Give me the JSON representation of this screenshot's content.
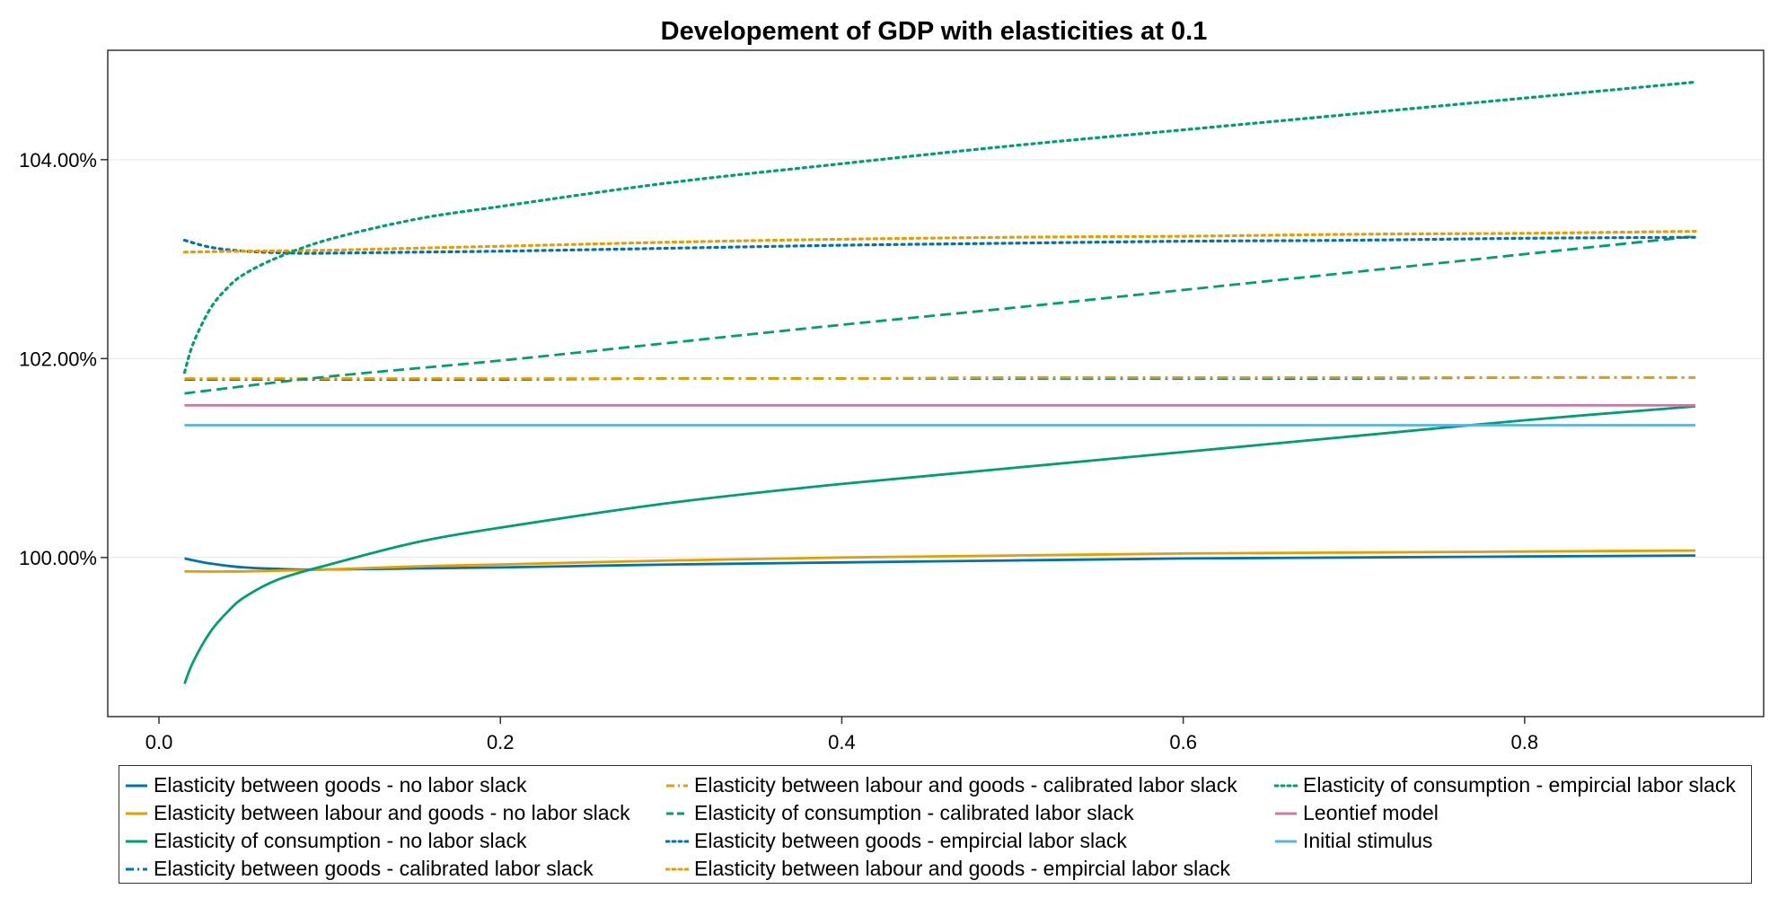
{
  "chart_data": {
    "type": "line",
    "title": "Developement of GDP with elasticities at 0.1",
    "xlabel": "",
    "ylabel": "",
    "xlim": [
      -0.03,
      0.94
    ],
    "ylim": [
      98.4,
      105.1
    ],
    "xticks": [
      0.0,
      0.2,
      0.4,
      0.6,
      0.8
    ],
    "xtick_labels": [
      "0.0",
      "0.2",
      "0.4",
      "0.6",
      "0.8"
    ],
    "yticks": [
      100,
      102,
      104
    ],
    "ytick_labels": [
      "100.00%",
      "102.00%",
      "104.00%"
    ],
    "grid": "horizontal",
    "legend_position": "bottom",
    "series": [
      {
        "name": "Elasticity between goods -  no labor slack",
        "color": "#0072b2",
        "style": "solid",
        "x": [
          0.015,
          0.03,
          0.05,
          0.08,
          0.1,
          0.15,
          0.2,
          0.3,
          0.4,
          0.5,
          0.6,
          0.7,
          0.8,
          0.9
        ],
        "y": [
          99.99,
          99.94,
          99.9,
          99.88,
          99.88,
          99.89,
          99.9,
          99.93,
          99.95,
          99.97,
          99.99,
          100.0,
          100.01,
          100.02
        ]
      },
      {
        "name": "Elasticity between labour and goods -  no labor slack",
        "color": "#e69f00",
        "style": "solid",
        "x": [
          0.015,
          0.05,
          0.1,
          0.15,
          0.2,
          0.3,
          0.4,
          0.5,
          0.6,
          0.7,
          0.8,
          0.9
        ],
        "y": [
          99.86,
          99.86,
          99.88,
          99.91,
          99.93,
          99.97,
          100.0,
          100.02,
          100.04,
          100.05,
          100.06,
          100.07
        ]
      },
      {
        "name": "Elasticity of consumption - no labor slack",
        "color": "#009e73",
        "style": "solid",
        "x": [
          0.015,
          0.02,
          0.03,
          0.04,
          0.05,
          0.07,
          0.1,
          0.15,
          0.2,
          0.3,
          0.4,
          0.5,
          0.6,
          0.7,
          0.8,
          0.9
        ],
        "y": [
          98.73,
          98.95,
          99.25,
          99.45,
          99.6,
          99.78,
          99.93,
          100.15,
          100.3,
          100.55,
          100.74,
          100.9,
          101.06,
          101.22,
          101.38,
          101.52
        ]
      },
      {
        "name": "Elasticity between goods -  calibrated labor slack",
        "color": "#0072b2",
        "style": "dashdot",
        "x": [
          0.015,
          0.1,
          0.2,
          0.3,
          0.4,
          0.5,
          0.6,
          0.7,
          0.8,
          0.9
        ],
        "y": [
          101.79,
          101.79,
          101.79,
          101.8,
          101.8,
          101.8,
          101.8,
          101.8,
          101.81,
          101.81
        ]
      },
      {
        "name": "Elasticity between labour and goods -  calibrated labor slack",
        "color": "#e69f00",
        "style": "dashdot",
        "x": [
          0.015,
          0.1,
          0.2,
          0.3,
          0.4,
          0.5,
          0.6,
          0.7,
          0.8,
          0.9
        ],
        "y": [
          101.8,
          101.8,
          101.8,
          101.8,
          101.8,
          101.81,
          101.81,
          101.81,
          101.81,
          101.81
        ]
      },
      {
        "name": "Elasticity of consumption - calibrated labor slack",
        "color": "#009e73",
        "style": "dashed",
        "x": [
          0.015,
          0.1,
          0.2,
          0.3,
          0.4,
          0.5,
          0.6,
          0.7,
          0.8,
          0.9
        ],
        "y": [
          101.65,
          101.82,
          101.98,
          102.16,
          102.34,
          102.51,
          102.69,
          102.87,
          103.05,
          103.23
        ]
      },
      {
        "name": "Elasticity between goods -  empircial labor slack",
        "color": "#0072b2",
        "style": "dotted",
        "x": [
          0.015,
          0.03,
          0.05,
          0.08,
          0.1,
          0.15,
          0.2,
          0.3,
          0.4,
          0.5,
          0.6,
          0.7,
          0.8,
          0.9
        ],
        "y": [
          103.19,
          103.12,
          103.08,
          103.06,
          103.06,
          103.07,
          103.08,
          103.11,
          103.14,
          103.16,
          103.18,
          103.19,
          103.21,
          103.22
        ]
      },
      {
        "name": "Elasticity between labour and goods -  empircial labor slack",
        "color": "#e69f00",
        "style": "dotted",
        "x": [
          0.015,
          0.05,
          0.1,
          0.15,
          0.2,
          0.3,
          0.4,
          0.5,
          0.6,
          0.7,
          0.8,
          0.9
        ],
        "y": [
          103.07,
          103.08,
          103.09,
          103.11,
          103.13,
          103.17,
          103.2,
          103.22,
          103.23,
          103.25,
          103.26,
          103.28
        ]
      },
      {
        "name": "Elasticity of consumption - empircial labor slack",
        "color": "#009e73",
        "style": "dotted",
        "x": [
          0.015,
          0.02,
          0.03,
          0.04,
          0.05,
          0.07,
          0.1,
          0.15,
          0.2,
          0.3,
          0.4,
          0.5,
          0.6,
          0.7,
          0.8,
          0.9
        ],
        "y": [
          101.86,
          102.15,
          102.5,
          102.71,
          102.85,
          103.02,
          103.2,
          103.4,
          103.53,
          103.77,
          103.96,
          104.14,
          104.3,
          104.46,
          104.62,
          104.78
        ]
      },
      {
        "name": "Leontief model",
        "color": "#cc79a7",
        "style": "solid",
        "x": [
          0.015,
          0.9
        ],
        "y": [
          101.53,
          101.53
        ]
      },
      {
        "name": "Initial stimulus",
        "color": "#56b4e9",
        "style": "solid",
        "x": [
          0.015,
          0.9
        ],
        "y": [
          101.33,
          101.33
        ]
      }
    ]
  }
}
